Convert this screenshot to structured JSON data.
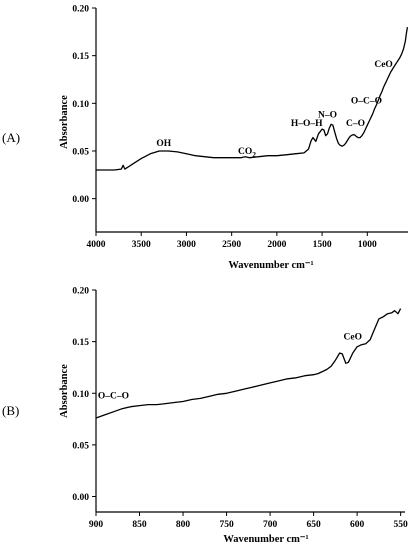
{
  "chart_data": [
    {
      "type": "line",
      "panel_label": "(A)",
      "xlabel": "Wavenumber cm⁻¹",
      "ylabel": "Absorbance",
      "xlim": [
        4000,
        550
      ],
      "ylim": [
        -0.035,
        0.2
      ],
      "x_reversed": true,
      "x_ticks": [
        4000,
        3500,
        3000,
        2500,
        2000,
        1500,
        1000
      ],
      "y_ticks": [
        0.0,
        0.05,
        0.1,
        0.15,
        0.2
      ],
      "x_tick_labels": [
        "4000",
        "3500",
        "3000",
        "2500",
        "2000",
        "1500",
        "1000"
      ],
      "y_tick_labels": [
        "0.00",
        "0.05",
        "0.10",
        "0.15",
        "0.20"
      ],
      "series": [
        {
          "x": [
            4000,
            3800,
            3720,
            3700,
            3680,
            3600,
            3500,
            3400,
            3300,
            3200,
            3100,
            3000,
            2900,
            2800,
            2700,
            2600,
            2500,
            2400,
            2350,
            2300,
            2200,
            2100,
            2000,
            1900,
            1800,
            1700,
            1650,
            1620,
            1600,
            1570,
            1540,
            1500,
            1480,
            1460,
            1440,
            1420,
            1400,
            1380,
            1360,
            1340,
            1320,
            1300,
            1280,
            1260,
            1240,
            1220,
            1200,
            1180,
            1160,
            1140,
            1120,
            1100,
            1080,
            1060,
            1040,
            1020,
            1000,
            980,
            960,
            940,
            920,
            900,
            880,
            860,
            840,
            820,
            800,
            780,
            760,
            740,
            720,
            700,
            680,
            660,
            640,
            620,
            600,
            580,
            570,
            560,
            555
          ],
          "y": [
            0.03,
            0.03,
            0.031,
            0.035,
            0.031,
            0.036,
            0.042,
            0.047,
            0.05,
            0.05,
            0.049,
            0.047,
            0.045,
            0.044,
            0.043,
            0.043,
            0.043,
            0.043,
            0.044,
            0.043,
            0.044,
            0.045,
            0.045,
            0.046,
            0.047,
            0.048,
            0.052,
            0.061,
            0.064,
            0.06,
            0.068,
            0.073,
            0.072,
            0.066,
            0.068,
            0.074,
            0.078,
            0.077,
            0.07,
            0.063,
            0.058,
            0.056,
            0.055,
            0.056,
            0.058,
            0.061,
            0.064,
            0.066,
            0.067,
            0.067,
            0.065,
            0.064,
            0.064,
            0.066,
            0.069,
            0.073,
            0.077,
            0.081,
            0.085,
            0.089,
            0.094,
            0.098,
            0.103,
            0.108,
            0.112,
            0.117,
            0.121,
            0.125,
            0.129,
            0.133,
            0.136,
            0.139,
            0.142,
            0.145,
            0.148,
            0.152,
            0.157,
            0.165,
            0.172,
            0.178,
            0.18
          ]
        }
      ],
      "annotations": [
        {
          "text": "OH",
          "x": 3250,
          "y": 0.055
        },
        {
          "text": "CO2",
          "x": 2330,
          "y": 0.047
        },
        {
          "text": "H–O–H",
          "x": 1670,
          "y": 0.076
        },
        {
          "text": "N–O",
          "x": 1440,
          "y": 0.085
        },
        {
          "text": "C–O",
          "x": 1130,
          "y": 0.076
        },
        {
          "text": "O–C–O",
          "x": 1010,
          "y": 0.1
        },
        {
          "text": "CeO",
          "x": 820,
          "y": 0.138
        }
      ]
    },
    {
      "type": "line",
      "panel_label": "(B)",
      "xlabel": "Wavenumber cm⁻¹",
      "ylabel": "Absorbance",
      "xlim": [
        900,
        545
      ],
      "ylim": [
        -0.015,
        0.2
      ],
      "x_reversed": true,
      "x_ticks": [
        900,
        850,
        800,
        750,
        700,
        650,
        600,
        550
      ],
      "y_ticks": [
        0.0,
        0.05,
        0.1,
        0.15,
        0.2
      ],
      "x_tick_labels": [
        "900",
        "850",
        "800",
        "750",
        "700",
        "650",
        "600",
        "550"
      ],
      "y_tick_labels": [
        "0.00",
        "0.05",
        "0.10",
        "0.15",
        "0.20"
      ],
      "series": [
        {
          "x": [
            900,
            890,
            880,
            870,
            860,
            850,
            840,
            830,
            820,
            810,
            800,
            790,
            780,
            770,
            760,
            750,
            740,
            730,
            720,
            710,
            700,
            690,
            680,
            670,
            660,
            650,
            645,
            640,
            635,
            630,
            625,
            620,
            617,
            613,
            610,
            605,
            600,
            595,
            590,
            585,
            580,
            575,
            570,
            565,
            560,
            557,
            553,
            550
          ],
          "y": [
            0.076,
            0.079,
            0.082,
            0.085,
            0.087,
            0.088,
            0.089,
            0.089,
            0.09,
            0.091,
            0.092,
            0.094,
            0.095,
            0.097,
            0.099,
            0.1,
            0.102,
            0.104,
            0.106,
            0.108,
            0.11,
            0.112,
            0.114,
            0.115,
            0.117,
            0.118,
            0.119,
            0.121,
            0.123,
            0.126,
            0.132,
            0.139,
            0.138,
            0.129,
            0.13,
            0.139,
            0.145,
            0.147,
            0.148,
            0.152,
            0.162,
            0.172,
            0.174,
            0.177,
            0.178,
            0.18,
            0.177,
            0.182
          ]
        }
      ],
      "annotations": [
        {
          "text": "O–C–O",
          "x": 880,
          "y": 0.095
        },
        {
          "text": "CeO",
          "x": 605,
          "y": 0.152
        }
      ]
    }
  ]
}
